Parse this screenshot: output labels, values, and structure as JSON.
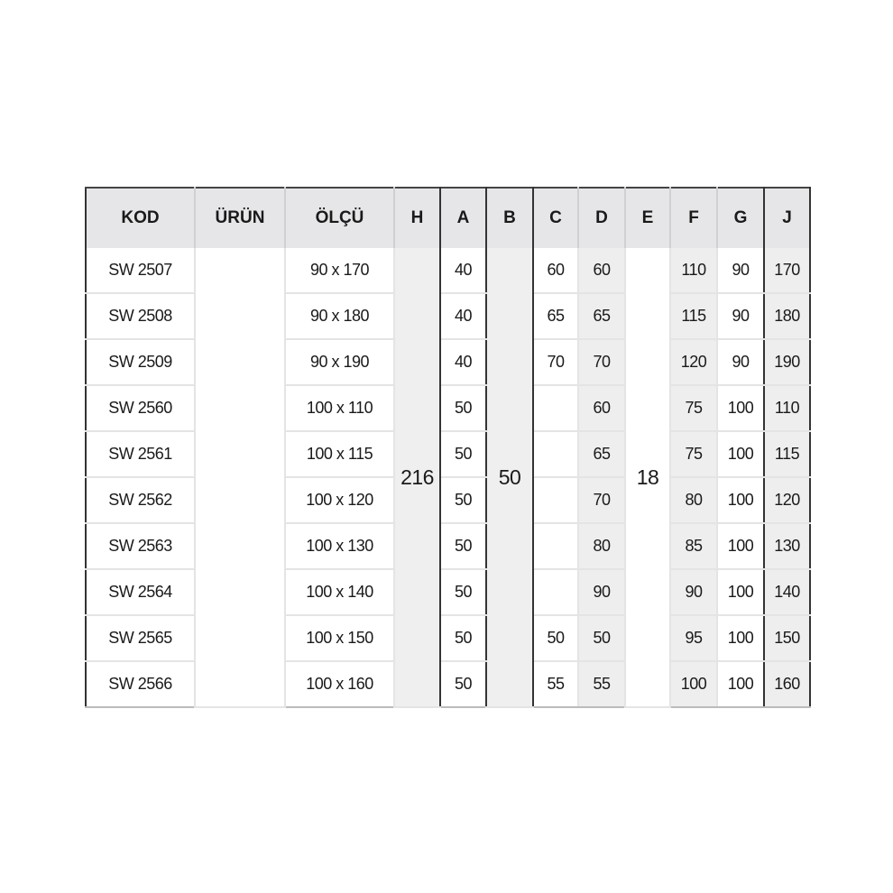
{
  "headers": [
    "KOD",
    "ÜRÜN",
    "ÖLÇÜ",
    "H",
    "A",
    "B",
    "C",
    "D",
    "E",
    "F",
    "G",
    "J"
  ],
  "merged": {
    "H": "216",
    "B": "50",
    "E": "18"
  },
  "rows": [
    {
      "kod": "SW 2507",
      "olcu": "90 x 170",
      "A": "40",
      "C": "60",
      "D": "60",
      "F": "110",
      "G": "90",
      "J": "170"
    },
    {
      "kod": "SW 2508",
      "olcu": "90 x 180",
      "A": "40",
      "C": "65",
      "D": "65",
      "F": "115",
      "G": "90",
      "J": "180"
    },
    {
      "kod": "SW 2509",
      "olcu": "90 x 190",
      "A": "40",
      "C": "70",
      "D": "70",
      "F": "120",
      "G": "90",
      "J": "190"
    },
    {
      "kod": "SW 2560",
      "olcu": "100 x 110",
      "A": "50",
      "C": "",
      "D": "60",
      "F": "75",
      "G": "100",
      "J": "110"
    },
    {
      "kod": "SW 2561",
      "olcu": "100 x 115",
      "A": "50",
      "C": "",
      "D": "65",
      "F": "75",
      "G": "100",
      "J": "115"
    },
    {
      "kod": "SW 2562",
      "olcu": "100 x 120",
      "A": "50",
      "C": "",
      "D": "70",
      "F": "80",
      "G": "100",
      "J": "120"
    },
    {
      "kod": "SW 2563",
      "olcu": "100 x 130",
      "A": "50",
      "C": "",
      "D": "80",
      "F": "85",
      "G": "100",
      "J": "130"
    },
    {
      "kod": "SW 2564",
      "olcu": "100 x 140",
      "A": "50",
      "C": "",
      "D": "90",
      "F": "90",
      "G": "100",
      "J": "140"
    },
    {
      "kod": "SW 2565",
      "olcu": "100 x 150",
      "A": "50",
      "C": "50",
      "D": "50",
      "F": "95",
      "G": "100",
      "J": "150"
    },
    {
      "kod": "SW 2566",
      "olcu": "100 x 160",
      "A": "50",
      "C": "55",
      "D": "55",
      "F": "100",
      "G": "100",
      "J": "160"
    }
  ]
}
